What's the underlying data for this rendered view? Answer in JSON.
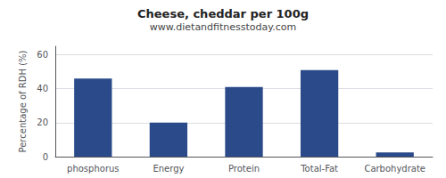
{
  "chart_data": {
    "type": "bar",
    "title": "Cheese, cheddar per 100g",
    "subtitle": "www.dietandfitnesstoday.com",
    "categories": [
      "phosphorus",
      "Energy",
      "Protein",
      "Total-Fat",
      "Carbohydrate"
    ],
    "values": [
      46,
      20,
      41,
      51,
      2.5
    ],
    "color": "#2b4a8a",
    "ylabel": "Percentage of RDH (%)",
    "ylim": [
      0,
      65
    ],
    "yticks": [
      0,
      20,
      40,
      60
    ],
    "grid": true
  }
}
